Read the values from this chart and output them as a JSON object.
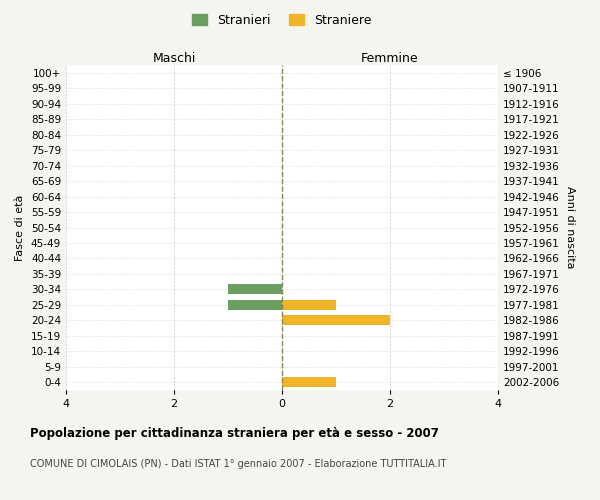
{
  "age_groups": [
    "100+",
    "95-99",
    "90-94",
    "85-89",
    "80-84",
    "75-79",
    "70-74",
    "65-69",
    "60-64",
    "55-59",
    "50-54",
    "45-49",
    "40-44",
    "35-39",
    "30-34",
    "25-29",
    "20-24",
    "15-19",
    "10-14",
    "5-9",
    "0-4"
  ],
  "birth_years": [
    "≤ 1906",
    "1907-1911",
    "1912-1916",
    "1917-1921",
    "1922-1926",
    "1927-1931",
    "1932-1936",
    "1937-1941",
    "1942-1946",
    "1947-1951",
    "1952-1956",
    "1957-1961",
    "1962-1966",
    "1967-1971",
    "1972-1976",
    "1977-1981",
    "1982-1986",
    "1987-1991",
    "1992-1996",
    "1997-2001",
    "2002-2006"
  ],
  "males": [
    0,
    0,
    0,
    0,
    0,
    0,
    0,
    0,
    0,
    0,
    0,
    0,
    0,
    0,
    1,
    1,
    0,
    0,
    0,
    0,
    0
  ],
  "females": [
    0,
    0,
    0,
    0,
    0,
    0,
    0,
    0,
    0,
    0,
    0,
    0,
    0,
    0,
    0,
    1,
    2,
    0,
    0,
    0,
    1
  ],
  "male_color": "#6a9e5e",
  "female_color": "#f0b429",
  "title": "Popolazione per cittadinanza straniera per età e sesso - 2007",
  "subtitle": "COMUNE DI CIMOLAIS (PN) - Dati ISTAT 1° gennaio 2007 - Elaborazione TUTTITALIA.IT",
  "ylabel_left": "Fasce di età",
  "ylabel_right": "Anni di nascita",
  "xlabel_left": "Maschi",
  "xlabel_right": "Femmine",
  "legend_male": "Stranieri",
  "legend_female": "Straniere",
  "xlim": 4,
  "bg_color": "#f5f5f0",
  "plot_bg_color": "#ffffff",
  "grid_color": "#cccccc"
}
